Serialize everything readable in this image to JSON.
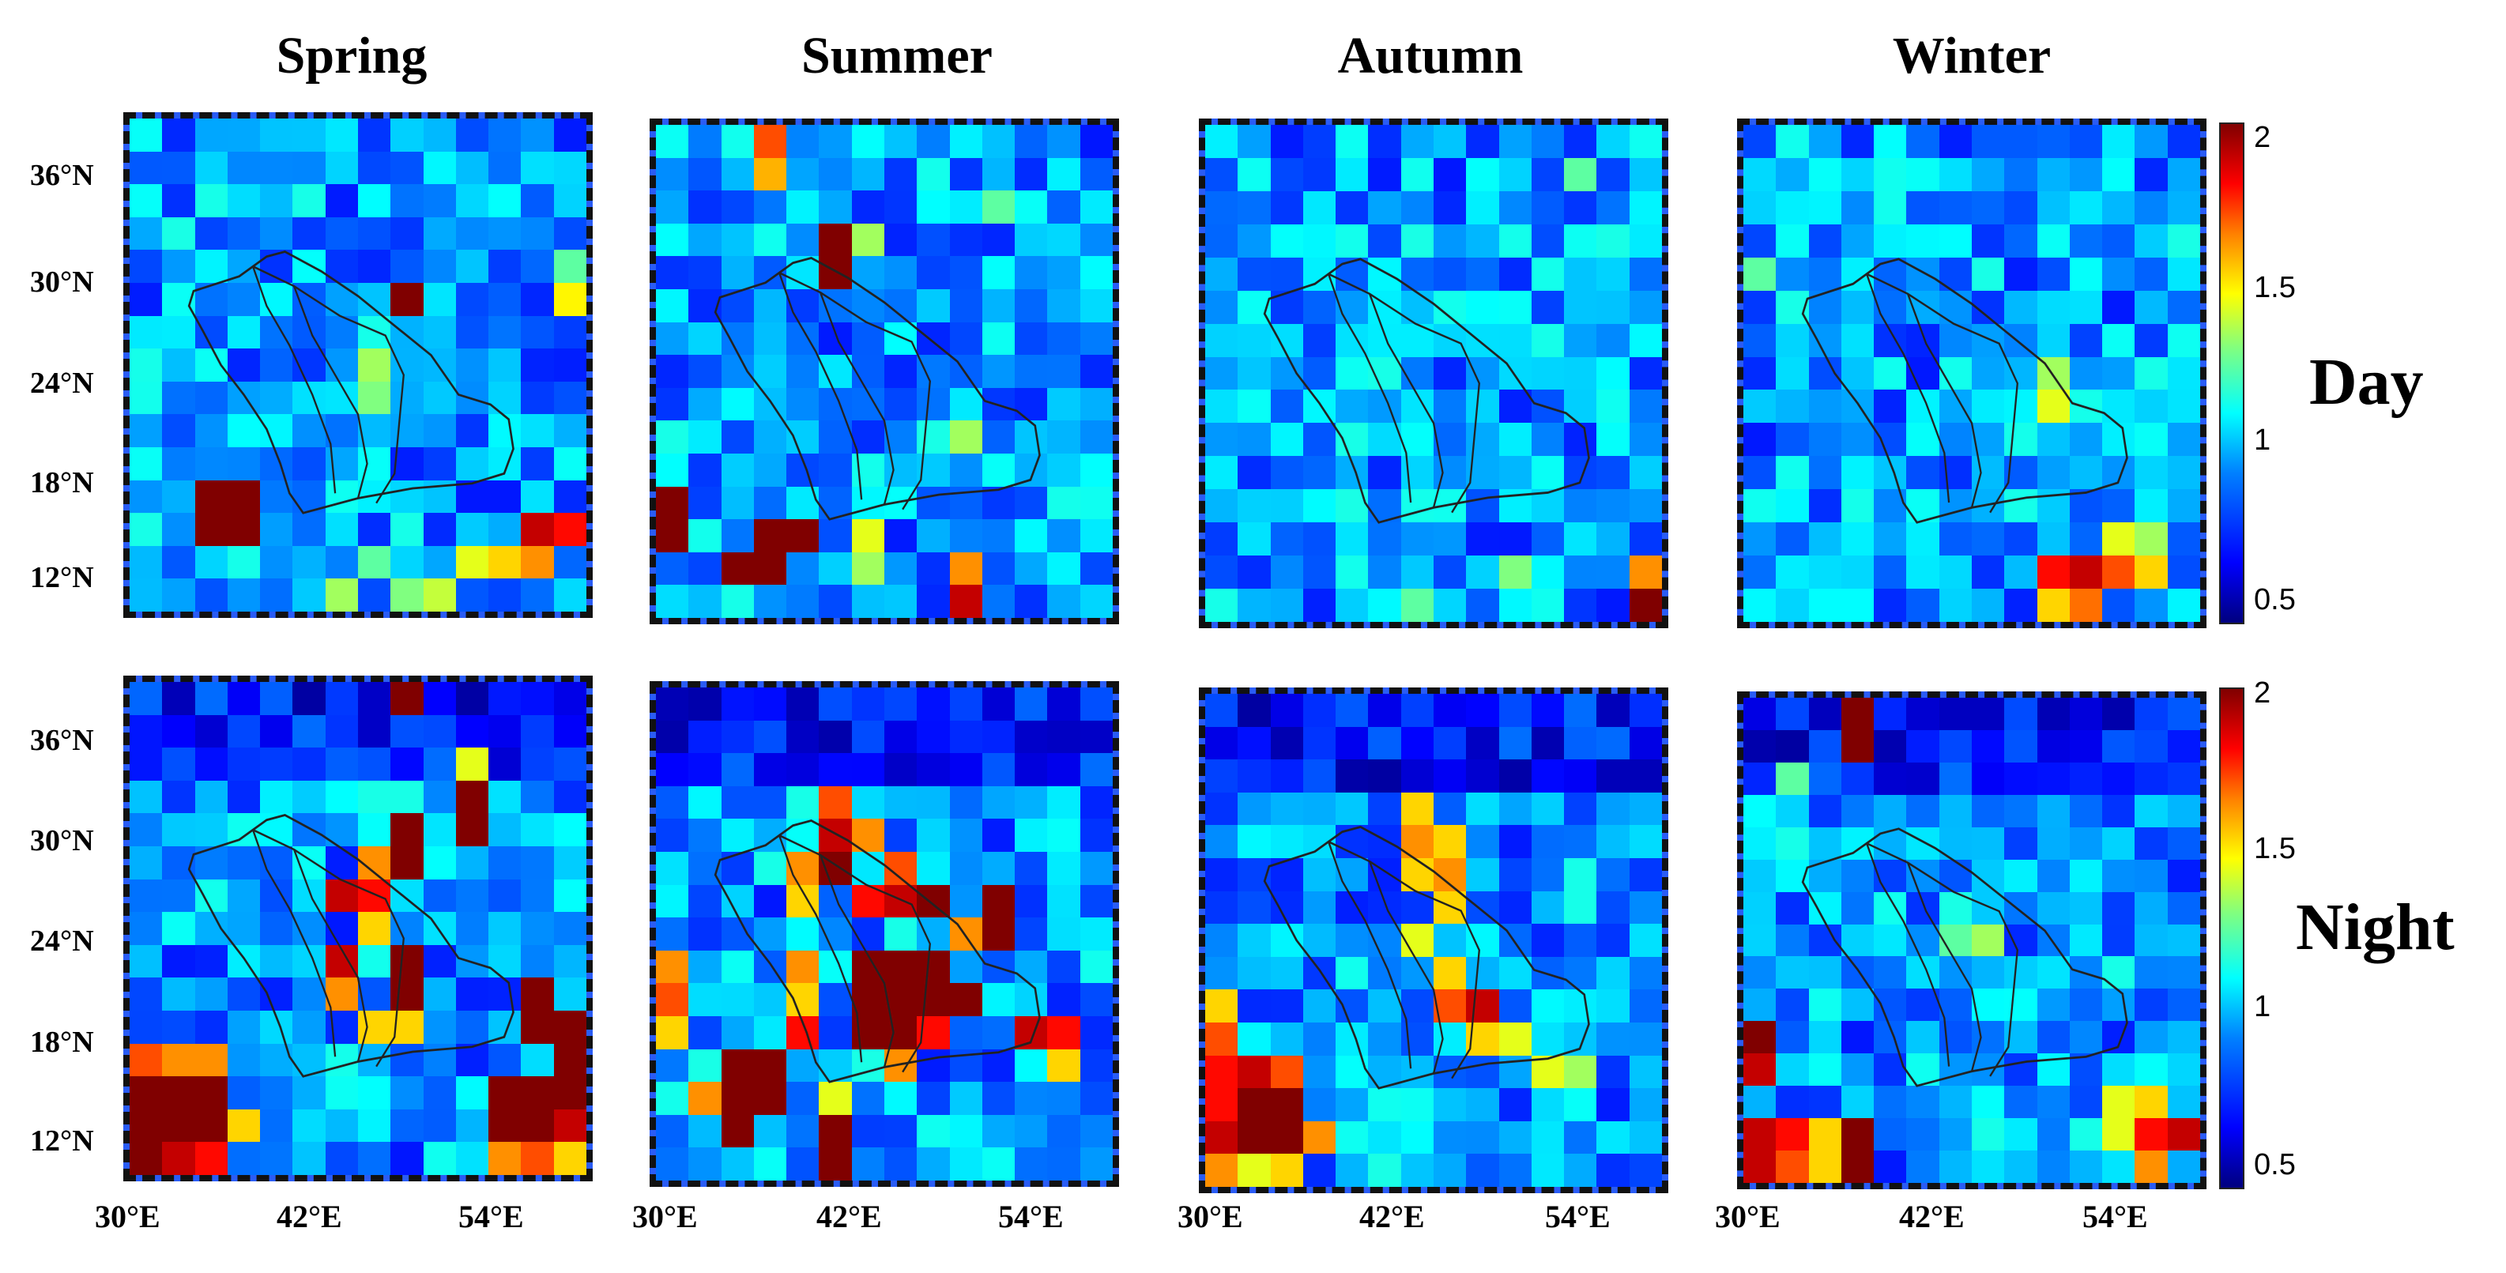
{
  "seasons": [
    "Spring",
    "Summer",
    "Autumn",
    "Winter"
  ],
  "rows": [
    "Day",
    "Night"
  ],
  "lat_labels": [
    "36°N",
    "30°N",
    "24°N",
    "18°N",
    "12°N"
  ],
  "lon_labels": [
    "30°E",
    "42°E",
    "54°E"
  ],
  "colorbar": {
    "min": 0.5,
    "max": 2,
    "ticks": [
      "2",
      "1.5",
      "1",
      "0.5"
    ],
    "colormap": "jet"
  },
  "panels": [
    {
      "season": "Spring",
      "row": "Day",
      "hotspots": [
        {
          "r": 5,
          "c": 8,
          "v": 2.0
        },
        {
          "r": 11,
          "c": 2,
          "v": 2.0
        },
        {
          "r": 11,
          "c": 3,
          "v": 2.0
        },
        {
          "r": 12,
          "c": 3,
          "v": 2.0
        },
        {
          "r": 12,
          "c": 2,
          "v": 2.0
        },
        {
          "r": 7,
          "c": 7,
          "v": 1.3
        },
        {
          "r": 8,
          "c": 7,
          "v": 1.25
        },
        {
          "r": 5,
          "c": 13,
          "v": 1.45
        },
        {
          "r": 4,
          "c": 13,
          "v": 1.2
        },
        {
          "r": 12,
          "c": 12,
          "v": 1.9
        },
        {
          "r": 12,
          "c": 13,
          "v": 1.8
        },
        {
          "r": 13,
          "c": 12,
          "v": 1.6
        },
        {
          "r": 13,
          "c": 11,
          "v": 1.5
        },
        {
          "r": 13,
          "c": 10,
          "v": 1.4
        },
        {
          "r": 14,
          "c": 9,
          "v": 1.35
        },
        {
          "r": 14,
          "c": 8,
          "v": 1.25
        },
        {
          "r": 13,
          "c": 7,
          "v": 1.2
        },
        {
          "r": 14,
          "c": 6,
          "v": 1.3
        }
      ]
    },
    {
      "season": "Summer",
      "row": "Day",
      "hotspots": [
        {
          "r": 0,
          "c": 3,
          "v": 1.7
        },
        {
          "r": 1,
          "c": 3,
          "v": 1.55
        },
        {
          "r": 3,
          "c": 5,
          "v": 2.0
        },
        {
          "r": 4,
          "c": 5,
          "v": 2.0
        },
        {
          "r": 3,
          "c": 6,
          "v": 1.3
        },
        {
          "r": 11,
          "c": 0,
          "v": 2.0
        },
        {
          "r": 12,
          "c": 0,
          "v": 2.0
        },
        {
          "r": 12,
          "c": 3,
          "v": 2.0
        },
        {
          "r": 13,
          "c": 3,
          "v": 2.0
        },
        {
          "r": 13,
          "c": 2,
          "v": 2.0
        },
        {
          "r": 12,
          "c": 4,
          "v": 2.0
        },
        {
          "r": 12,
          "c": 6,
          "v": 1.4
        },
        {
          "r": 13,
          "c": 6,
          "v": 1.3
        },
        {
          "r": 9,
          "c": 9,
          "v": 1.3
        },
        {
          "r": 14,
          "c": 9,
          "v": 1.9
        },
        {
          "r": 13,
          "c": 9,
          "v": 1.6
        },
        {
          "r": 2,
          "c": 10,
          "v": 1.2
        }
      ]
    },
    {
      "season": "Autumn",
      "row": "Day",
      "hotspots": [
        {
          "r": 14,
          "c": 13,
          "v": 2.0
        },
        {
          "r": 13,
          "c": 13,
          "v": 1.6
        },
        {
          "r": 1,
          "c": 11,
          "v": 1.2
        },
        {
          "r": 13,
          "c": 9,
          "v": 1.25
        },
        {
          "r": 14,
          "c": 6,
          "v": 1.2
        }
      ]
    },
    {
      "season": "Winter",
      "row": "Day",
      "hotspots": [
        {
          "r": 13,
          "c": 9,
          "v": 1.8
        },
        {
          "r": 13,
          "c": 10,
          "v": 1.9
        },
        {
          "r": 13,
          "c": 11,
          "v": 1.7
        },
        {
          "r": 14,
          "c": 10,
          "v": 1.65
        },
        {
          "r": 14,
          "c": 9,
          "v": 1.5
        },
        {
          "r": 12,
          "c": 11,
          "v": 1.4
        },
        {
          "r": 12,
          "c": 12,
          "v": 1.3
        },
        {
          "r": 13,
          "c": 12,
          "v": 1.5
        },
        {
          "r": 7,
          "c": 9,
          "v": 1.3
        },
        {
          "r": 8,
          "c": 9,
          "v": 1.4
        },
        {
          "r": 4,
          "c": 0,
          "v": 1.2
        }
      ]
    },
    {
      "season": "Spring",
      "row": "Night",
      "hotspots": [
        {
          "r": 0,
          "c": 8,
          "v": 2.0
        },
        {
          "r": 2,
          "c": 10,
          "v": 1.4
        },
        {
          "r": 3,
          "c": 10,
          "v": 2.0
        },
        {
          "r": 4,
          "c": 10,
          "v": 2.0
        },
        {
          "r": 5,
          "c": 8,
          "v": 2.0
        },
        {
          "r": 4,
          "c": 8,
          "v": 2.0
        },
        {
          "r": 6,
          "c": 6,
          "v": 1.9
        },
        {
          "r": 6,
          "c": 7,
          "v": 1.8
        },
        {
          "r": 5,
          "c": 7,
          "v": 1.6
        },
        {
          "r": 7,
          "c": 7,
          "v": 1.5
        },
        {
          "r": 8,
          "c": 8,
          "v": 2.0
        },
        {
          "r": 9,
          "c": 8,
          "v": 2.0
        },
        {
          "r": 8,
          "c": 6,
          "v": 1.9
        },
        {
          "r": 9,
          "c": 6,
          "v": 1.6
        },
        {
          "r": 10,
          "c": 8,
          "v": 1.5
        },
        {
          "r": 10,
          "c": 7,
          "v": 1.5
        },
        {
          "r": 11,
          "c": 0,
          "v": 1.7
        },
        {
          "r": 11,
          "c": 1,
          "v": 1.6
        },
        {
          "r": 11,
          "c": 2,
          "v": 1.6
        },
        {
          "r": 12,
          "c": 0,
          "v": 2.0
        },
        {
          "r": 12,
          "c": 1,
          "v": 2.0
        },
        {
          "r": 12,
          "c": 2,
          "v": 2.0
        },
        {
          "r": 13,
          "c": 0,
          "v": 2.0
        },
        {
          "r": 13,
          "c": 1,
          "v": 2.0
        },
        {
          "r": 13,
          "c": 2,
          "v": 2.0
        },
        {
          "r": 14,
          "c": 0,
          "v": 2.0
        },
        {
          "r": 14,
          "c": 1,
          "v": 1.9
        },
        {
          "r": 14,
          "c": 2,
          "v": 1.8
        },
        {
          "r": 13,
          "c": 3,
          "v": 1.5
        },
        {
          "r": 9,
          "c": 12,
          "v": 2.0
        },
        {
          "r": 10,
          "c": 12,
          "v": 2.0
        },
        {
          "r": 10,
          "c": 13,
          "v": 2.0
        },
        {
          "r": 11,
          "c": 13,
          "v": 2.0
        },
        {
          "r": 12,
          "c": 11,
          "v": 2.0
        },
        {
          "r": 12,
          "c": 12,
          "v": 2.0
        },
        {
          "r": 12,
          "c": 13,
          "v": 2.0
        },
        {
          "r": 13,
          "c": 11,
          "v": 2.0
        },
        {
          "r": 13,
          "c": 12,
          "v": 2.0
        },
        {
          "r": 13,
          "c": 13,
          "v": 1.9
        },
        {
          "r": 14,
          "c": 11,
          "v": 1.6
        },
        {
          "r": 14,
          "c": 12,
          "v": 1.7
        },
        {
          "r": 14,
          "c": 13,
          "v": 1.5
        }
      ]
    },
    {
      "season": "Summer",
      "row": "Night",
      "hotspots": [
        {
          "r": 3,
          "c": 5,
          "v": 1.7
        },
        {
          "r": 4,
          "c": 5,
          "v": 1.9
        },
        {
          "r": 5,
          "c": 5,
          "v": 2.0
        },
        {
          "r": 4,
          "c": 6,
          "v": 1.6
        },
        {
          "r": 5,
          "c": 4,
          "v": 1.6
        },
        {
          "r": 6,
          "c": 4,
          "v": 1.5
        },
        {
          "r": 6,
          "c": 6,
          "v": 1.8
        },
        {
          "r": 5,
          "c": 7,
          "v": 1.7
        },
        {
          "r": 6,
          "c": 7,
          "v": 1.9
        },
        {
          "r": 6,
          "c": 8,
          "v": 2.0
        },
        {
          "r": 6,
          "c": 10,
          "v": 2.0
        },
        {
          "r": 7,
          "c": 10,
          "v": 2.0
        },
        {
          "r": 7,
          "c": 9,
          "v": 1.6
        },
        {
          "r": 8,
          "c": 6,
          "v": 2.0
        },
        {
          "r": 8,
          "c": 7,
          "v": 2.0
        },
        {
          "r": 8,
          "c": 8,
          "v": 2.0
        },
        {
          "r": 9,
          "c": 6,
          "v": 2.0
        },
        {
          "r": 9,
          "c": 7,
          "v": 2.0
        },
        {
          "r": 9,
          "c": 8,
          "v": 2.0
        },
        {
          "r": 9,
          "c": 9,
          "v": 2.0
        },
        {
          "r": 10,
          "c": 6,
          "v": 2.0
        },
        {
          "r": 10,
          "c": 7,
          "v": 2.0
        },
        {
          "r": 10,
          "c": 8,
          "v": 1.8
        },
        {
          "r": 11,
          "c": 7,
          "v": 1.6
        },
        {
          "r": 8,
          "c": 4,
          "v": 1.6
        },
        {
          "r": 9,
          "c": 4,
          "v": 1.5
        },
        {
          "r": 10,
          "c": 4,
          "v": 1.8
        },
        {
          "r": 10,
          "c": 11,
          "v": 1.9
        },
        {
          "r": 10,
          "c": 12,
          "v": 1.8
        },
        {
          "r": 11,
          "c": 12,
          "v": 1.5
        },
        {
          "r": 8,
          "c": 0,
          "v": 1.6
        },
        {
          "r": 9,
          "c": 0,
          "v": 1.7
        },
        {
          "r": 10,
          "c": 0,
          "v": 1.5
        },
        {
          "r": 11,
          "c": 2,
          "v": 2.0
        },
        {
          "r": 11,
          "c": 3,
          "v": 2.0
        },
        {
          "r": 12,
          "c": 2,
          "v": 2.0
        },
        {
          "r": 12,
          "c": 3,
          "v": 2.0
        },
        {
          "r": 13,
          "c": 2,
          "v": 2.0
        },
        {
          "r": 12,
          "c": 1,
          "v": 1.6
        },
        {
          "r": 13,
          "c": 5,
          "v": 2.0
        },
        {
          "r": 14,
          "c": 5,
          "v": 2.0
        },
        {
          "r": 12,
          "c": 5,
          "v": 1.4
        }
      ]
    },
    {
      "season": "Autumn",
      "row": "Night",
      "hotspots": [
        {
          "r": 3,
          "c": 6,
          "v": 1.5
        },
        {
          "r": 4,
          "c": 6,
          "v": 1.6
        },
        {
          "r": 4,
          "c": 7,
          "v": 1.5
        },
        {
          "r": 5,
          "c": 6,
          "v": 1.5
        },
        {
          "r": 5,
          "c": 7,
          "v": 1.6
        },
        {
          "r": 6,
          "c": 7,
          "v": 1.5
        },
        {
          "r": 7,
          "c": 6,
          "v": 1.4
        },
        {
          "r": 8,
          "c": 7,
          "v": 1.5
        },
        {
          "r": 9,
          "c": 7,
          "v": 1.7
        },
        {
          "r": 9,
          "c": 8,
          "v": 1.9
        },
        {
          "r": 10,
          "c": 8,
          "v": 1.5
        },
        {
          "r": 10,
          "c": 9,
          "v": 1.4
        },
        {
          "r": 9,
          "c": 0,
          "v": 1.5
        },
        {
          "r": 10,
          "c": 0,
          "v": 1.7
        },
        {
          "r": 11,
          "c": 0,
          "v": 1.8
        },
        {
          "r": 11,
          "c": 1,
          "v": 1.9
        },
        {
          "r": 11,
          "c": 2,
          "v": 1.7
        },
        {
          "r": 12,
          "c": 0,
          "v": 1.8
        },
        {
          "r": 12,
          "c": 1,
          "v": 2.0
        },
        {
          "r": 12,
          "c": 2,
          "v": 2.0
        },
        {
          "r": 13,
          "c": 0,
          "v": 1.9
        },
        {
          "r": 13,
          "c": 1,
          "v": 2.0
        },
        {
          "r": 13,
          "c": 2,
          "v": 2.0
        },
        {
          "r": 14,
          "c": 0,
          "v": 1.6
        },
        {
          "r": 14,
          "c": 1,
          "v": 1.4
        },
        {
          "r": 14,
          "c": 2,
          "v": 1.5
        },
        {
          "r": 13,
          "c": 3,
          "v": 1.6
        },
        {
          "r": 11,
          "c": 10,
          "v": 1.4
        },
        {
          "r": 11,
          "c": 11,
          "v": 1.3
        }
      ]
    },
    {
      "season": "Winter",
      "row": "Night",
      "hotspots": [
        {
          "r": 0,
          "c": 3,
          "v": 2.0
        },
        {
          "r": 1,
          "c": 3,
          "v": 2.0
        },
        {
          "r": 10,
          "c": 0,
          "v": 2.0
        },
        {
          "r": 11,
          "c": 0,
          "v": 1.9
        },
        {
          "r": 13,
          "c": 0,
          "v": 1.9
        },
        {
          "r": 13,
          "c": 1,
          "v": 1.8
        },
        {
          "r": 14,
          "c": 0,
          "v": 1.9
        },
        {
          "r": 14,
          "c": 1,
          "v": 1.7
        },
        {
          "r": 13,
          "c": 2,
          "v": 1.5
        },
        {
          "r": 13,
          "c": 3,
          "v": 2.0
        },
        {
          "r": 14,
          "c": 3,
          "v": 2.0
        },
        {
          "r": 14,
          "c": 2,
          "v": 1.5
        },
        {
          "r": 12,
          "c": 11,
          "v": 1.4
        },
        {
          "r": 12,
          "c": 12,
          "v": 1.5
        },
        {
          "r": 13,
          "c": 12,
          "v": 1.8
        },
        {
          "r": 13,
          "c": 13,
          "v": 1.9
        },
        {
          "r": 13,
          "c": 11,
          "v": 1.4
        },
        {
          "r": 14,
          "c": 12,
          "v": 1.6
        },
        {
          "r": 7,
          "c": 7,
          "v": 1.3
        },
        {
          "r": 7,
          "c": 6,
          "v": 1.2
        },
        {
          "r": 2,
          "c": 1,
          "v": 1.2
        }
      ]
    }
  ]
}
